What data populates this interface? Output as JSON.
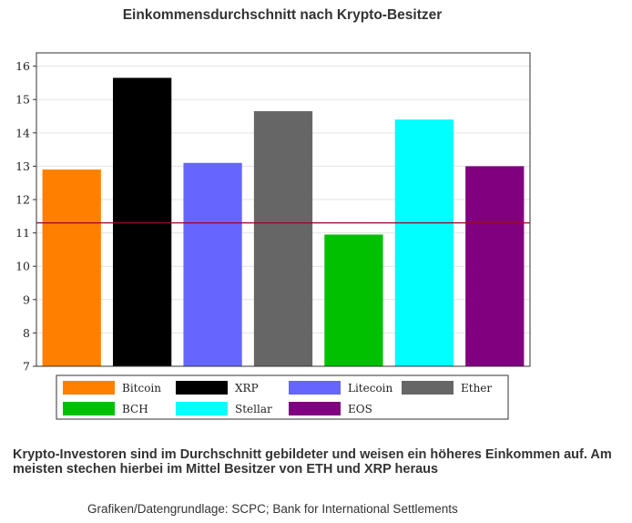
{
  "chart_data": {
    "type": "bar",
    "title": "Einkommensdurchschnitt nach Krypto-Besitzer",
    "categories": [
      "Bitcoin",
      "XRP",
      "Litecoin",
      "Ether",
      "BCH",
      "Stellar",
      "EOS"
    ],
    "values": [
      12.9,
      15.65,
      13.1,
      14.65,
      10.95,
      14.4,
      13.0
    ],
    "colors": [
      "#ff7f00",
      "#000000",
      "#6666ff",
      "#666666",
      "#00c000",
      "#00ffff",
      "#800080"
    ],
    "reference_line": {
      "value": 11.3,
      "color": "#a0002a"
    },
    "ylim": [
      7,
      16.4
    ],
    "yticks": [
      7,
      8,
      9,
      10,
      11,
      12,
      13,
      14,
      15,
      16
    ],
    "grid": "horizontal",
    "legend_position": "bottom",
    "legend_columns": 4,
    "xlabel": "",
    "ylabel": ""
  },
  "caption": "Krypto-Investoren sind im Durchschnitt gebildeter und weisen ein höheres Einkommen auf. Am meisten stechen hierbei im Mittel Besitzer von ETH und XRP heraus",
  "source": "Grafiken/Datengrundlage: SCPC; Bank for International Settlements"
}
